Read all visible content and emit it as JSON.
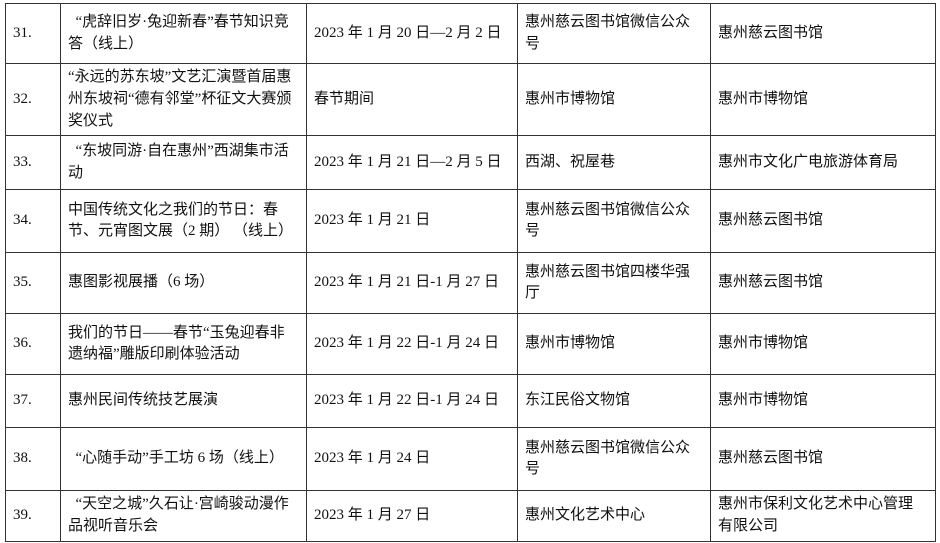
{
  "colors": {
    "border": "#333333",
    "text": "#111111",
    "background": "#ffffff"
  },
  "table": {
    "rows": [
      {
        "num": "31.",
        "name": "  “虎辞旧岁·兔迎新春”春节知识竞答（线上）",
        "date": "2023 年 1 月 20 日—2 月 2 日",
        "venue": "惠州慈云图书馆微信公众号",
        "organizer": "惠州慈云图书馆"
      },
      {
        "num": "32.",
        "name": "“永远的苏东坡”文艺汇演暨首届惠州东坡祠“德有邻堂”杯征文大赛颁奖仪式",
        "date": "春节期间",
        "venue": "惠州市博物馆",
        "organizer": "惠州市博物馆"
      },
      {
        "num": "33.",
        "name": "  “东坡同游·自在惠州”西湖集市活动",
        "date": "2023 年 1 月 21 日—2 月 5 日",
        "venue": "西湖、祝屋巷",
        "organizer": "惠州市文化广电旅游体育局"
      },
      {
        "num": "34.",
        "name": "中国传统文化之我们的节日：春节、元宵图文展（2 期） （线上）",
        "date": "2023 年 1 月 21 日",
        "venue": "惠州慈云图书馆微信公众号",
        "organizer": "惠州慈云图书馆"
      },
      {
        "num": "35.",
        "name": "惠图影视展播（6 场）",
        "date": "2023 年 1 月 21 日-1 月 27 日",
        "venue": "惠州慈云图书馆四楼华强厅",
        "organizer": "惠州慈云图书馆"
      },
      {
        "num": "36.",
        "name": "我们的节日——春节“玉兔迎春非遗纳福”雕版印刷体验活动",
        "date": "2023 年 1 月 22 日-1 月 24 日",
        "venue": "惠州市博物馆",
        "organizer": "惠州市博物馆"
      },
      {
        "num": "37.",
        "name": "惠州民间传统技艺展演",
        "date": "2023 年 1 月 22 日-1 月 24 日",
        "venue": "东江民俗文物馆",
        "organizer": "惠州市博物馆"
      },
      {
        "num": "38.",
        "name": "  “心随手动”手工坊 6 场（线上）",
        "date": "2023 年 1 月 24 日",
        "venue": "惠州慈云图书馆微信公众号",
        "organizer": "惠州慈云图书馆"
      },
      {
        "num": "39.",
        "name": "  “天空之城”久石让·宫崎骏动漫作品视听音乐会",
        "date": "2023 年 1 月 27 日",
        "venue": "惠州文化艺术中心",
        "organizer": "惠州市保利文化艺术中心管理有限公司"
      }
    ]
  }
}
